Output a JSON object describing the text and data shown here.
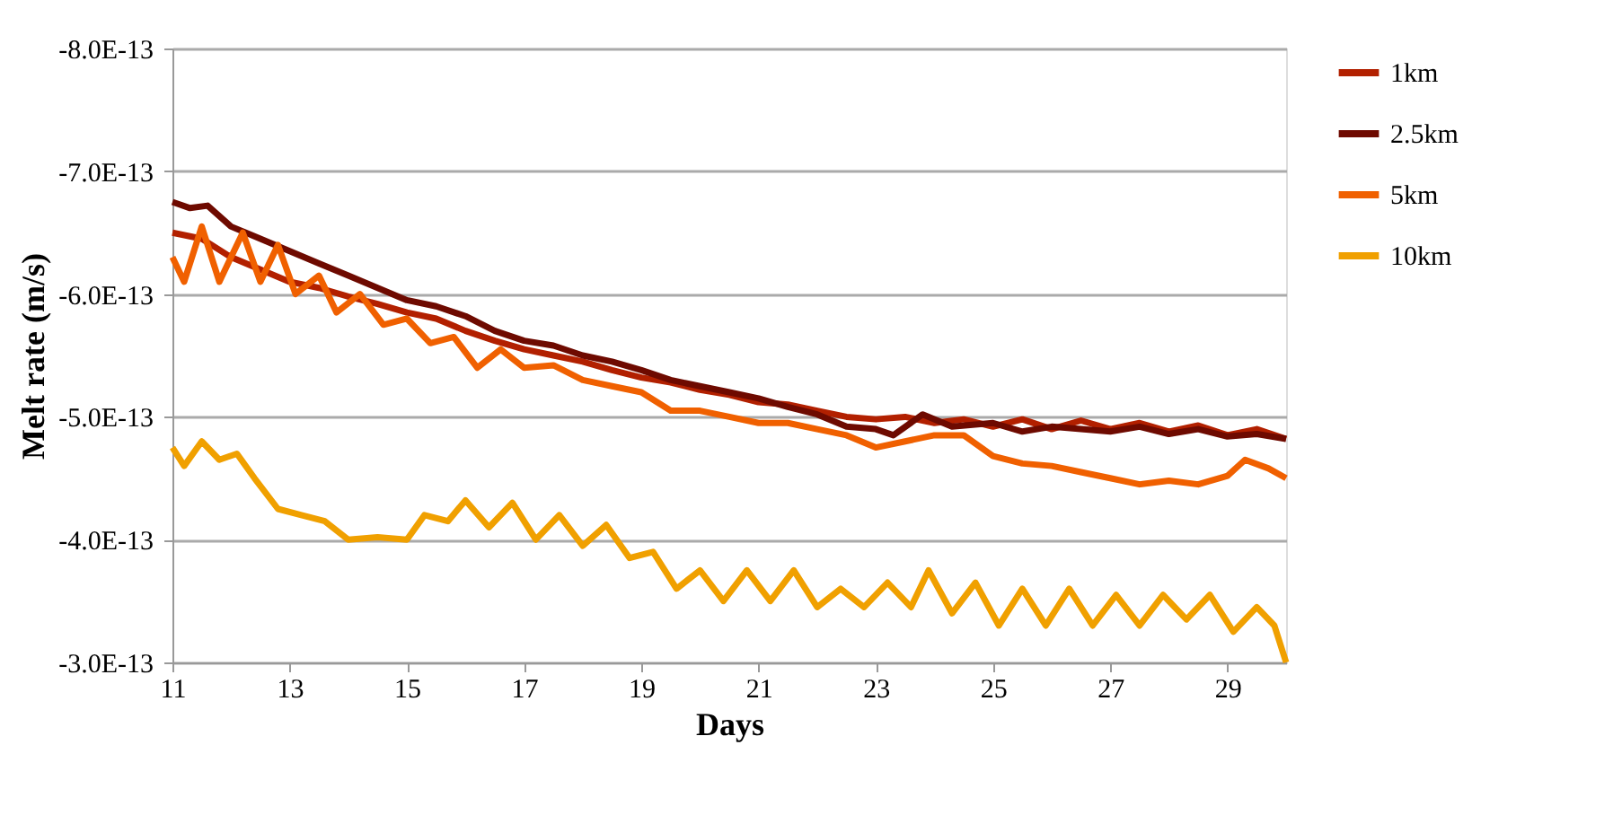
{
  "chart_data": {
    "type": "line",
    "xlabel": "Days",
    "ylabel": "Melt rate (m/s)",
    "xlim": [
      11,
      30
    ],
    "xticks": [
      11,
      13,
      15,
      17,
      19,
      21,
      23,
      25,
      27,
      29
    ],
    "ylim": [
      -3e-13,
      -8e-13
    ],
    "yticks": [
      {
        "value": -8e-13,
        "label": "-8.0E-13"
      },
      {
        "value": -7e-13,
        "label": "-7.0E-13"
      },
      {
        "value": -6e-13,
        "label": "-6.0E-13"
      },
      {
        "value": -5e-13,
        "label": "-5.0E-13"
      },
      {
        "value": -4e-13,
        "label": "-4.0E-13"
      },
      {
        "value": -3e-13,
        "label": "-3.0E-13"
      }
    ],
    "grid": "y",
    "legend": "right",
    "marker": "none",
    "line_style": "solid",
    "series": [
      {
        "name": "1km",
        "color": "#b22000",
        "x": [
          11,
          11.5,
          12,
          12.5,
          13,
          13.5,
          14,
          14.5,
          15,
          15.5,
          16,
          16.5,
          17,
          17.5,
          18,
          18.5,
          19,
          19.5,
          20,
          20.5,
          21,
          21.5,
          22,
          22.5,
          23,
          23.5,
          24,
          24.5,
          25,
          25.5,
          26,
          26.5,
          27,
          27.5,
          28,
          28.5,
          29,
          29.5,
          30
        ],
        "values": [
          -6.5e-13,
          -6.45e-13,
          -6.3e-13,
          -6.2e-13,
          -6.1e-13,
          -6.05e-13,
          -5.98e-13,
          -5.92e-13,
          -5.85e-13,
          -5.8e-13,
          -5.7e-13,
          -5.62e-13,
          -5.55e-13,
          -5.5e-13,
          -5.45e-13,
          -5.38e-13,
          -5.32e-13,
          -5.28e-13,
          -5.22e-13,
          -5.18e-13,
          -5.12e-13,
          -5.1e-13,
          -5.05e-13,
          -5e-13,
          -4.98e-13,
          -5e-13,
          -4.95e-13,
          -4.98e-13,
          -4.92e-13,
          -4.98e-13,
          -4.9e-13,
          -4.97e-13,
          -4.9e-13,
          -4.95e-13,
          -4.88e-13,
          -4.93e-13,
          -4.85e-13,
          -4.9e-13,
          -4.82e-13
        ]
      },
      {
        "name": "2.5km",
        "color": "#6e0a00",
        "x": [
          11,
          11.3,
          11.6,
          12,
          12.5,
          13,
          13.5,
          14,
          14.5,
          15,
          15.5,
          16,
          16.5,
          17,
          17.5,
          18,
          18.5,
          19,
          19.5,
          20,
          20.5,
          21,
          21.5,
          22,
          22.5,
          23,
          23.3,
          23.8,
          24.3,
          25,
          25.5,
          26,
          26.5,
          27,
          27.5,
          28,
          28.5,
          29,
          29.5,
          30
        ],
        "values": [
          -6.75e-13,
          -6.7e-13,
          -6.72e-13,
          -6.55e-13,
          -6.45e-13,
          -6.35e-13,
          -6.25e-13,
          -6.15e-13,
          -6.05e-13,
          -5.95e-13,
          -5.9e-13,
          -5.82e-13,
          -5.7e-13,
          -5.62e-13,
          -5.58e-13,
          -5.5e-13,
          -5.45e-13,
          -5.38e-13,
          -5.3e-13,
          -5.25e-13,
          -5.2e-13,
          -5.15e-13,
          -5.08e-13,
          -5.02e-13,
          -4.92e-13,
          -4.9e-13,
          -4.85e-13,
          -5.02e-13,
          -4.92e-13,
          -4.95e-13,
          -4.88e-13,
          -4.92e-13,
          -4.9e-13,
          -4.88e-13,
          -4.92e-13,
          -4.86e-13,
          -4.9e-13,
          -4.84e-13,
          -4.86e-13,
          -4.82e-13
        ]
      },
      {
        "name": "5km",
        "color": "#f06000",
        "x": [
          11,
          11.2,
          11.5,
          11.8,
          12.2,
          12.5,
          12.8,
          13.1,
          13.5,
          13.8,
          14.2,
          14.6,
          15,
          15.4,
          15.8,
          16.2,
          16.6,
          17,
          17.5,
          18,
          18.5,
          19,
          19.5,
          20,
          20.5,
          21,
          21.5,
          22,
          22.5,
          23,
          23.5,
          24,
          24.5,
          25,
          25.5,
          26,
          26.5,
          27,
          27.5,
          28,
          28.5,
          29,
          29.3,
          29.7,
          30
        ],
        "values": [
          -6.3e-13,
          -6.1e-13,
          -6.55e-13,
          -6.1e-13,
          -6.5e-13,
          -6.1e-13,
          -6.4e-13,
          -6e-13,
          -6.15e-13,
          -5.85e-13,
          -6e-13,
          -5.75e-13,
          -5.8e-13,
          -5.6e-13,
          -5.65e-13,
          -5.4e-13,
          -5.55e-13,
          -5.4e-13,
          -5.42e-13,
          -5.3e-13,
          -5.25e-13,
          -5.2e-13,
          -5.05e-13,
          -5.05e-13,
          -5e-13,
          -4.95e-13,
          -4.95e-13,
          -4.9e-13,
          -4.85e-13,
          -4.75e-13,
          -4.8e-13,
          -4.85e-13,
          -4.85e-13,
          -4.68e-13,
          -4.62e-13,
          -4.6e-13,
          -4.55e-13,
          -4.5e-13,
          -4.45e-13,
          -4.48e-13,
          -4.45e-13,
          -4.52e-13,
          -4.65e-13,
          -4.58e-13,
          -4.5e-13
        ]
      },
      {
        "name": "10km",
        "color": "#f0a000",
        "x": [
          11,
          11.2,
          11.5,
          11.8,
          12.1,
          12.4,
          12.8,
          13.2,
          13.6,
          14,
          14.5,
          15,
          15.3,
          15.7,
          16,
          16.4,
          16.8,
          17.2,
          17.6,
          18,
          18.4,
          18.8,
          19.2,
          19.6,
          20,
          20.4,
          20.8,
          21.2,
          21.6,
          22,
          22.4,
          22.8,
          23.2,
          23.6,
          23.9,
          24.3,
          24.7,
          25.1,
          25.5,
          25.9,
          26.3,
          26.7,
          27.1,
          27.5,
          27.9,
          28.3,
          28.7,
          29.1,
          29.5,
          29.8,
          30
        ],
        "values": [
          -4.75e-13,
          -4.6e-13,
          -4.8e-13,
          -4.65e-13,
          -4.7e-13,
          -4.5e-13,
          -4.25e-13,
          -4.2e-13,
          -4.15e-13,
          -4e-13,
          -4.02e-13,
          -4e-13,
          -4.2e-13,
          -4.15e-13,
          -4.32e-13,
          -4.1e-13,
          -4.3e-13,
          -4e-13,
          -4.2e-13,
          -3.95e-13,
          -4.12e-13,
          -3.85e-13,
          -3.9e-13,
          -3.6e-13,
          -3.75e-13,
          -3.5e-13,
          -3.75e-13,
          -3.5e-13,
          -3.75e-13,
          -3.45e-13,
          -3.6e-13,
          -3.45e-13,
          -3.65e-13,
          -3.45e-13,
          -3.75e-13,
          -3.4e-13,
          -3.65e-13,
          -3.3e-13,
          -3.6e-13,
          -3.3e-13,
          -3.6e-13,
          -3.3e-13,
          -3.55e-13,
          -3.3e-13,
          -3.55e-13,
          -3.35e-13,
          -3.55e-13,
          -3.25e-13,
          -3.45e-13,
          -3.3e-13,
          -3e-13
        ]
      }
    ]
  }
}
